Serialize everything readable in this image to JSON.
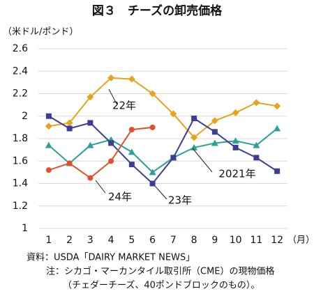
{
  "chart_data": {
    "type": "line",
    "title": "図３　チーズの卸売価格",
    "y_label": "（米ドル/ポンド）",
    "x_label": "（月）",
    "x": [
      1,
      2,
      3,
      4,
      5,
      6,
      7,
      8,
      9,
      10,
      11,
      12
    ],
    "xlim": [
      0.5,
      12.5
    ],
    "xticks": [
      1,
      2,
      3,
      4,
      5,
      6,
      7,
      8,
      9,
      10,
      11,
      12
    ],
    "ylim": [
      1,
      2.6
    ],
    "yticks": [
      1,
      1.2,
      1.4,
      1.6,
      1.8,
      2,
      2.2,
      2.4,
      2.6
    ],
    "grid": true,
    "series": [
      {
        "name": "22年",
        "color": "#e8a31c",
        "marker": "diamond",
        "values": [
          1.91,
          1.94,
          2.17,
          2.34,
          2.33,
          2.2,
          2.02,
          1.81,
          1.96,
          2.03,
          2.12,
          2.09
        ]
      },
      {
        "name": "2021年",
        "color": "#2aa198",
        "marker": "triangle",
        "values": [
          1.74,
          1.58,
          1.74,
          1.79,
          1.68,
          1.5,
          1.63,
          1.72,
          1.76,
          1.78,
          1.74,
          1.89
        ]
      },
      {
        "name": "23年",
        "color": "#3d3d96",
        "marker": "square",
        "values": [
          2.0,
          1.89,
          1.94,
          1.76,
          1.57,
          1.4,
          1.63,
          1.98,
          1.86,
          1.72,
          1.63,
          1.51
        ]
      },
      {
        "name": "24年",
        "color": "#e0502a",
        "marker": "circle",
        "values": [
          1.52,
          1.58,
          1.45,
          1.6,
          1.88,
          1.9,
          null,
          null,
          null,
          null,
          null,
          null
        ]
      }
    ],
    "notes": [
      "資料：USDA「DAIRY MARKET NEWS」",
      "注：シカゴ・マーカンタイル取引所（CME）の現物価格",
      "（チェダーチーズ、40ポンドブロックのもの）。"
    ]
  }
}
